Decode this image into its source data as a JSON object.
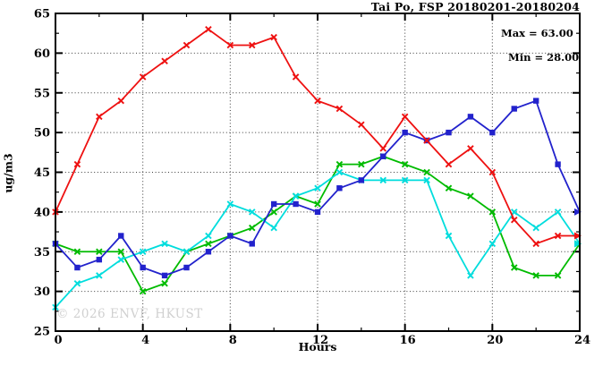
{
  "page": {
    "background": "#ffffff"
  },
  "watermark": {
    "text": "© 2026 ENVF, HKUST"
  },
  "chart_data": {
    "type": "line",
    "title": "Tai Po, FSP 20180201-20180204",
    "annotations": {
      "max": "Max = 63.00",
      "min": "Min = 28.00"
    },
    "grid": true,
    "grid_color": "#3a3a3a",
    "legend_position": "none",
    "x_axis": {
      "label": "Hours",
      "range": [
        0,
        24
      ],
      "ticks": [
        0,
        4,
        8,
        12,
        16,
        20,
        24
      ],
      "minor_step": 2
    },
    "y_axis": {
      "label": "ug/m3",
      "range": [
        25,
        65
      ],
      "ticks": [
        25,
        30,
        35,
        40,
        45,
        50,
        55,
        60,
        65
      ],
      "minor_step": 2.5
    },
    "x": [
      0,
      1,
      2,
      3,
      4,
      5,
      6,
      7,
      8,
      9,
      10,
      11,
      12,
      13,
      14,
      15,
      16,
      17,
      18,
      19,
      20,
      21,
      22,
      23,
      24
    ],
    "series": [
      {
        "name": "green-series",
        "color": "#00bb00",
        "marker": "x",
        "values": [
          36,
          35,
          35,
          35,
          30,
          31,
          35,
          36,
          37,
          38,
          40,
          42,
          41,
          46,
          46,
          47,
          46,
          45,
          43,
          42,
          40,
          33,
          32,
          32,
          36
        ]
      },
      {
        "name": "cyan-series",
        "color": "#00dddd",
        "marker": "x",
        "values": [
          28,
          31,
          32,
          34,
          35,
          36,
          35,
          37,
          41,
          40,
          38,
          42,
          43,
          45,
          44,
          44,
          44,
          44,
          37,
          32,
          36,
          40,
          38,
          40,
          36
        ]
      },
      {
        "name": "blue-series",
        "color": "#2222cc",
        "marker": "square",
        "values": [
          36,
          33,
          34,
          37,
          33,
          32,
          33,
          35,
          37,
          36,
          41,
          41,
          40,
          43,
          44,
          47,
          50,
          49,
          50,
          52,
          50,
          53,
          54,
          46,
          40
        ]
      },
      {
        "name": "red-series",
        "color": "#ee1111",
        "marker": "x",
        "values": [
          40,
          46,
          52,
          54,
          57,
          59,
          61,
          63,
          61,
          61,
          62,
          57,
          54,
          53,
          51,
          48,
          52,
          49,
          46,
          48,
          45,
          39,
          36,
          37,
          37
        ]
      }
    ]
  }
}
